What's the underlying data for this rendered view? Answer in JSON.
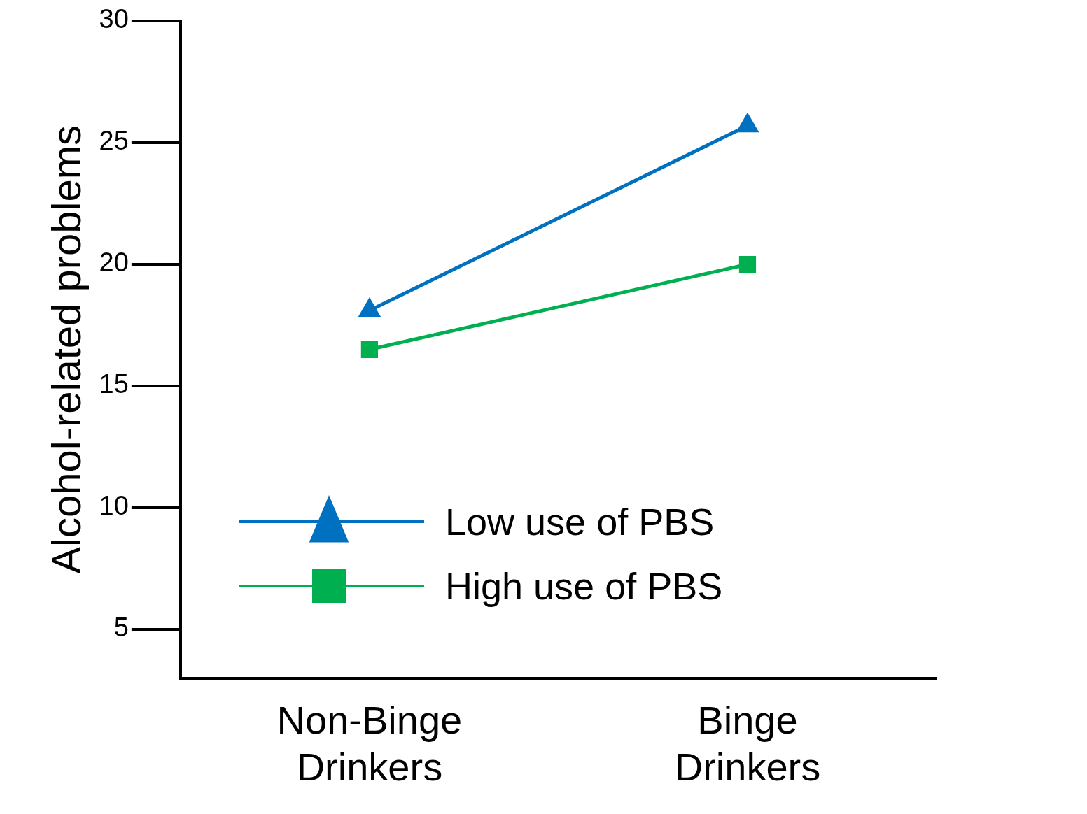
{
  "chart_data": {
    "type": "line",
    "ylabel": "Alcohol-related problems",
    "categories": [
      "Non-Binge Drinkers",
      "Binge Drinkers"
    ],
    "series": [
      {
        "name": "Low use of PBS",
        "color": "#0070c0",
        "marker": "triangle",
        "values": [
          18.1,
          25.7
        ]
      },
      {
        "name": "High use of PBS",
        "color": "#00b050",
        "marker": "square",
        "values": [
          16.5,
          20
        ]
      }
    ],
    "ylim": [
      3,
      30
    ],
    "yticks": [
      5,
      10,
      15,
      20,
      25,
      30
    ],
    "grid": false,
    "legend": "bottom left"
  }
}
